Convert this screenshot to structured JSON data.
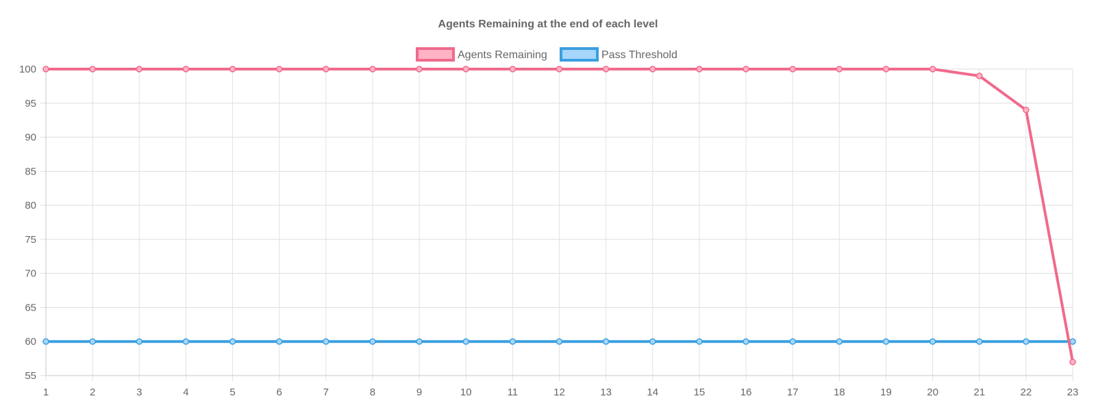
{
  "chart_data": {
    "type": "line",
    "title": "Agents Remaining at the end of each level",
    "xlabel": "",
    "ylabel": "",
    "categories": [
      "1",
      "2",
      "3",
      "4",
      "5",
      "6",
      "7",
      "8",
      "9",
      "10",
      "11",
      "12",
      "13",
      "14",
      "15",
      "16",
      "17",
      "18",
      "19",
      "20",
      "21",
      "22",
      "23"
    ],
    "ylim": [
      55,
      100
    ],
    "yticks": [
      55,
      60,
      65,
      70,
      75,
      80,
      85,
      90,
      95,
      100
    ],
    "grid": true,
    "legend_position": "top-center",
    "series": [
      {
        "name": "Agents Remaining",
        "color": "#f06a8c",
        "fill": "#ffb3c4",
        "values": [
          100,
          100,
          100,
          100,
          100,
          100,
          100,
          100,
          100,
          100,
          100,
          100,
          100,
          100,
          100,
          100,
          100,
          100,
          100,
          100,
          99,
          94,
          57
        ]
      },
      {
        "name": "Pass Threshold",
        "color": "#3a9fe0",
        "fill": "#a6d6fa",
        "values": [
          60,
          60,
          60,
          60,
          60,
          60,
          60,
          60,
          60,
          60,
          60,
          60,
          60,
          60,
          60,
          60,
          60,
          60,
          60,
          60,
          60,
          60,
          60
        ]
      }
    ]
  }
}
